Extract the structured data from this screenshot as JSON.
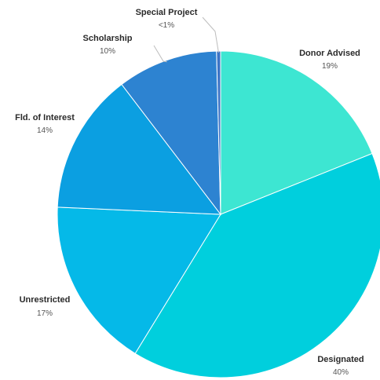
{
  "chart_data": {
    "type": "pie",
    "title": "",
    "series": [
      {
        "slices": [
          {
            "label": "Donor Advised",
            "percent_text": "19%",
            "value": 19,
            "color": "#3de6d2"
          },
          {
            "label": "Designated",
            "percent_text": "40%",
            "value": 40,
            "color": "#00cfdd"
          },
          {
            "label": "Unrestricted",
            "percent_text": "17%",
            "value": 17,
            "color": "#05b9e8"
          },
          {
            "label": "Fld. of Interest",
            "percent_text": "14%",
            "value": 14,
            "color": "#0b9fe1"
          },
          {
            "label": "Scholarship",
            "percent_text": "10%",
            "value": 10,
            "color": "#2d83d1"
          },
          {
            "label": "Special Project",
            "percent_text": "<1%",
            "value": 0.4,
            "color": "#3b74c6"
          }
        ]
      }
    ],
    "legend": "none",
    "labels": "outside"
  }
}
